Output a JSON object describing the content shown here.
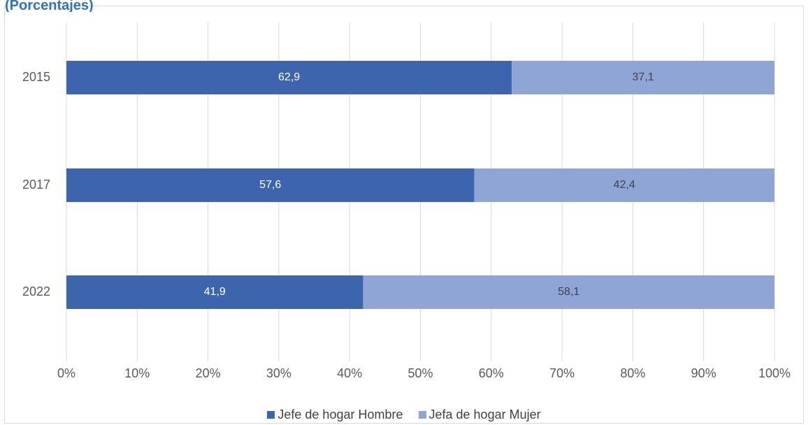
{
  "title": "(Porcentajes)",
  "chart_data": {
    "type": "bar",
    "orientation": "horizontal",
    "stacked": "percent",
    "categories": [
      "2015",
      "2017",
      "2022"
    ],
    "series": [
      {
        "name": "Jefe de hogar Hombre",
        "values": [
          62.9,
          57.6,
          41.9
        ],
        "color": "#3d65ae",
        "label_color": "#ffffff"
      },
      {
        "name": "Jefa de hogar Mujer",
        "values": [
          37.1,
          42.4,
          58.1
        ],
        "color": "#8fa5d6",
        "label_color": "#404040"
      }
    ],
    "data_labels": [
      [
        "62,9",
        "57,6",
        "41,9"
      ],
      [
        "37,1",
        "42,4",
        "58,1"
      ]
    ],
    "x_ticks": [
      "0%",
      "10%",
      "20%",
      "30%",
      "40%",
      "50%",
      "60%",
      "70%",
      "80%",
      "90%",
      "100%"
    ],
    "xlim": [
      0,
      100
    ],
    "grid": true,
    "legend_position": "bottom"
  }
}
